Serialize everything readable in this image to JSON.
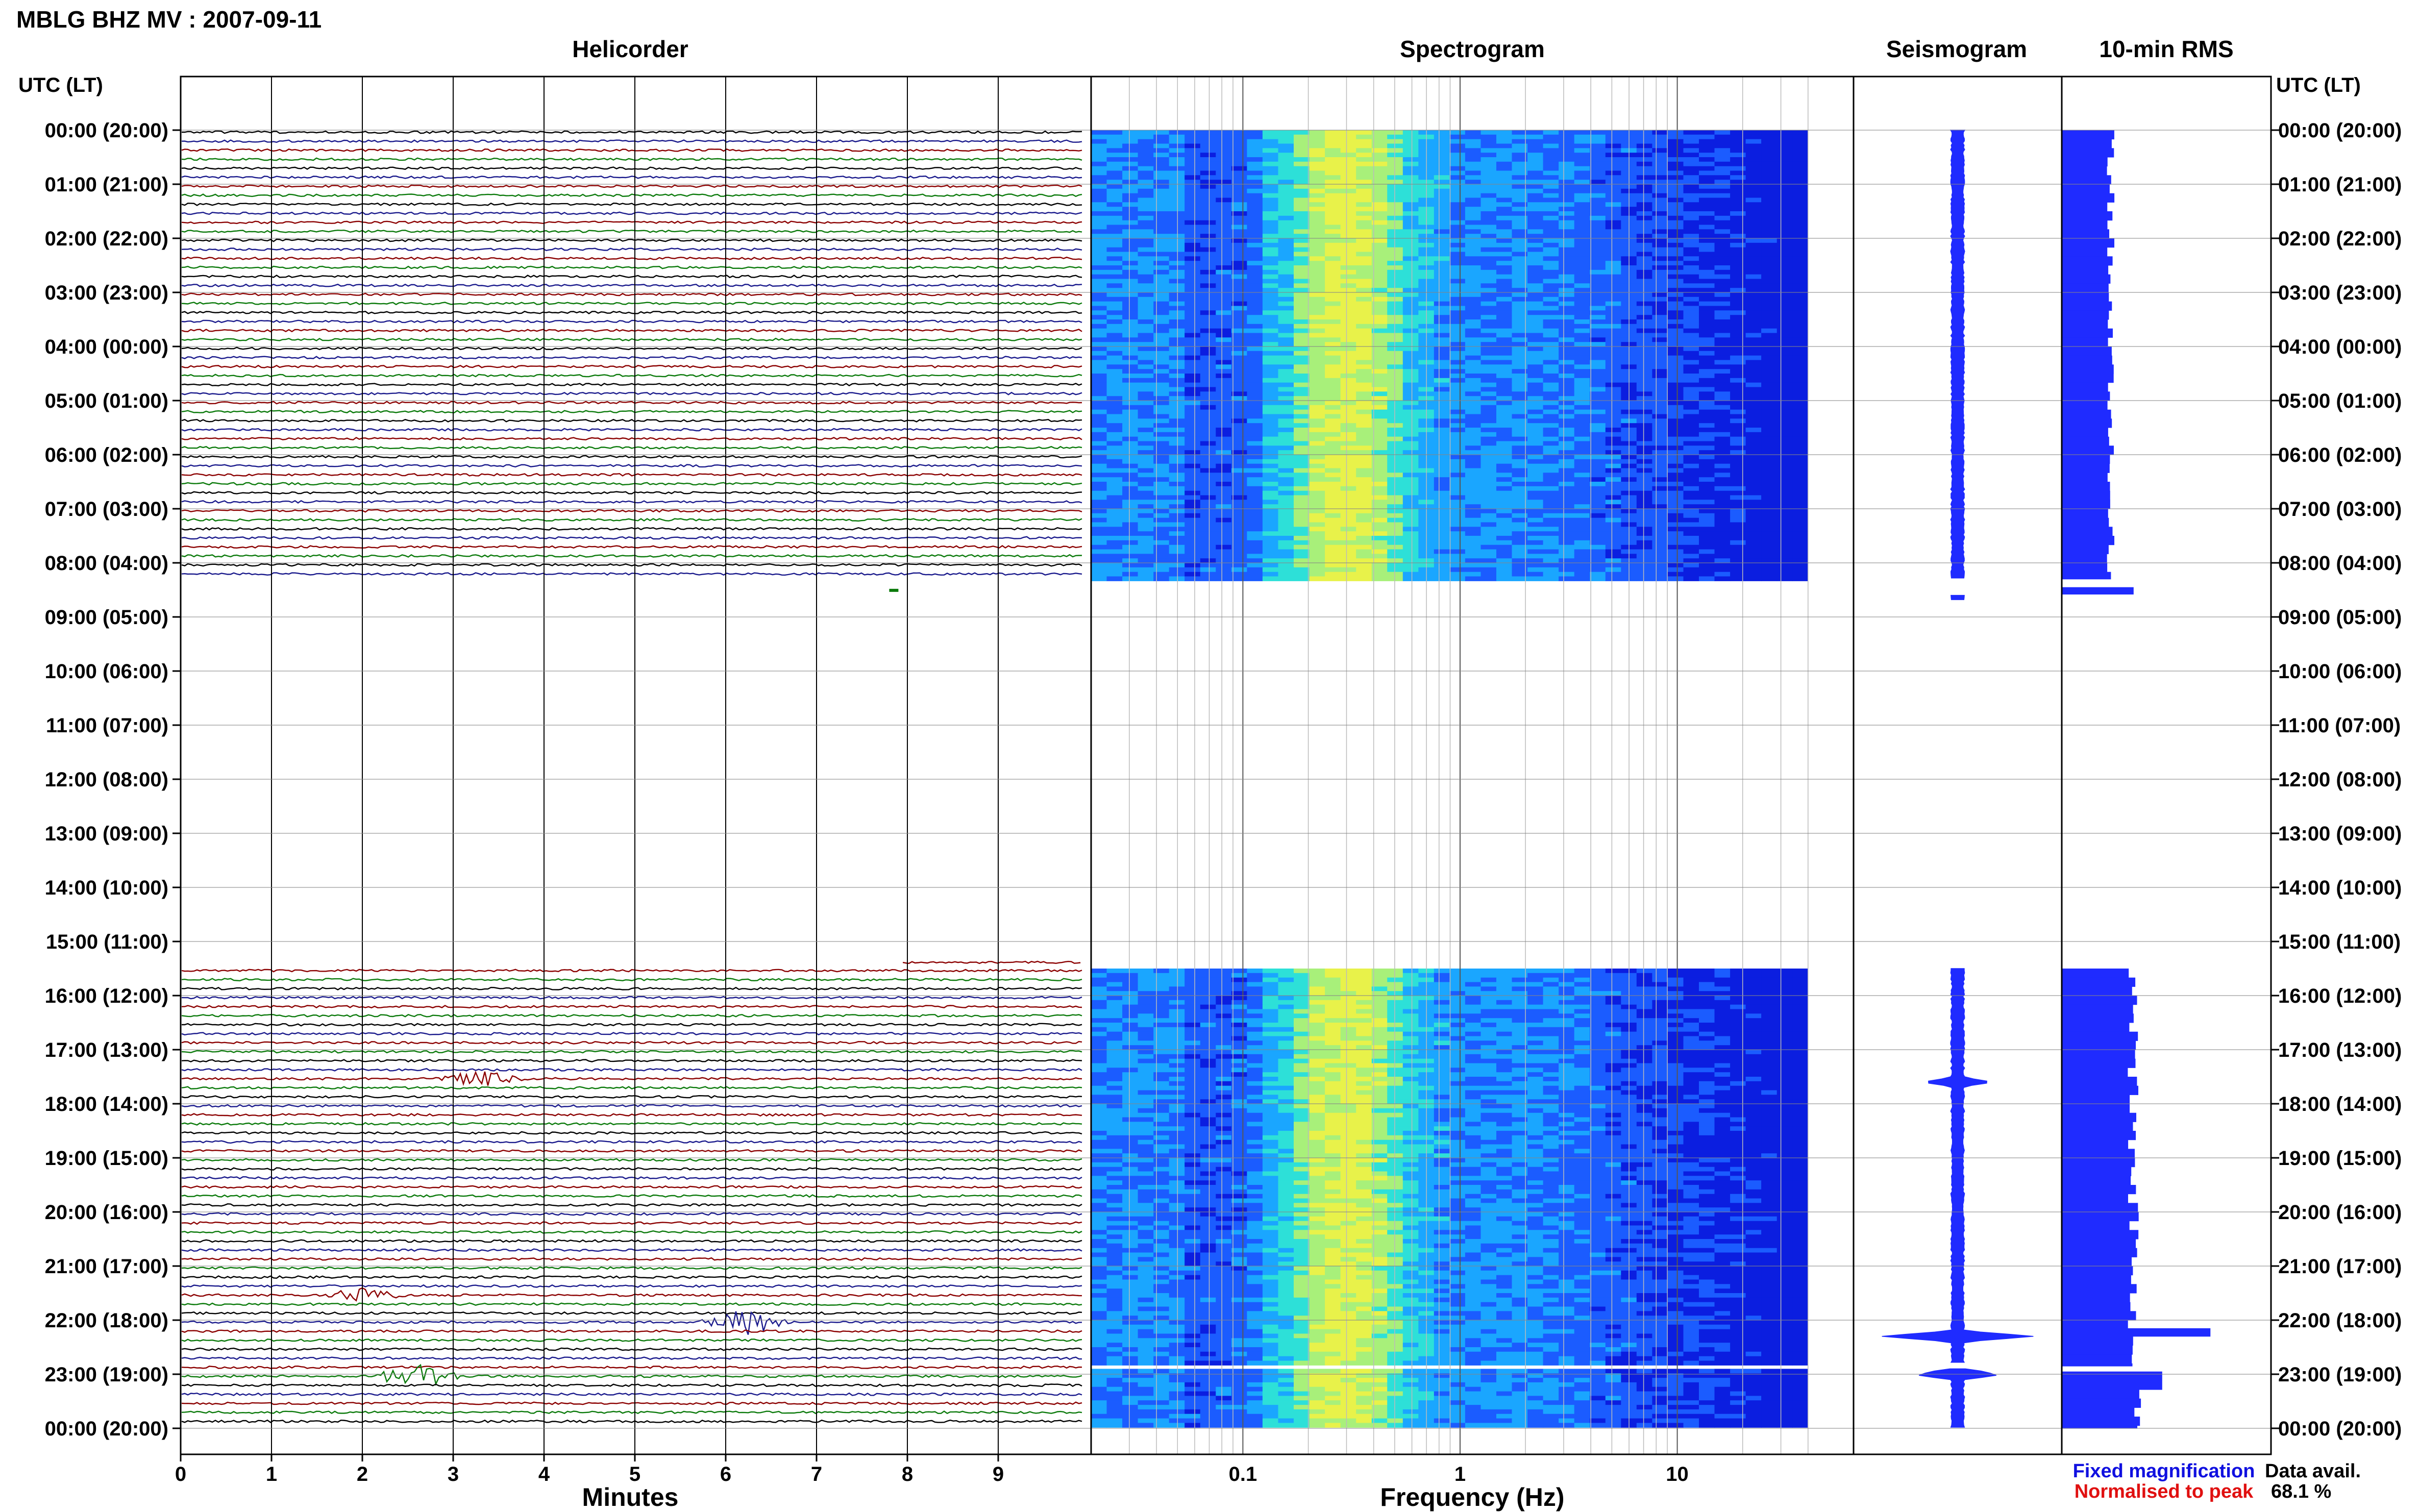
{
  "header": {
    "title": "MBLG BHZ MV : 2007-09-11",
    "panels": {
      "helicorder": "Helicorder",
      "spectrogram": "Spectrogram",
      "seismogram": "Seismogram",
      "rms": "10-min RMS"
    },
    "time_axis_label": "UTC (LT)"
  },
  "footer": {
    "minutes_label": "Minutes",
    "frequency_label": "Frequency (Hz)",
    "legend_fixed": "Fixed magnification",
    "legend_normalised": "Normalised to peak",
    "data_avail_label": "Data avail.",
    "data_avail_value": "68.1 %"
  },
  "colors": {
    "fixed_magnification": "#1010e0",
    "normalised_to_peak": "#e01010",
    "trace_cycle": [
      "#000000",
      "#1a1a8c",
      "#8b0000",
      "#0b7a0b"
    ],
    "seismogram_fill": "#1f2bff",
    "rms_fill": "#1f2bff"
  },
  "chart_data": [
    {
      "type": "line",
      "panel": "helicorder",
      "title": "Helicorder",
      "xlabel": "Minutes",
      "x_ticks": [
        0,
        1,
        2,
        3,
        4,
        5,
        6,
        7,
        8,
        9
      ],
      "x_range": [
        0,
        10
      ],
      "y_tick_labels": [
        "00:00 (20:00)",
        "01:00 (21:00)",
        "02:00 (22:00)",
        "03:00 (23:00)",
        "04:00 (00:00)",
        "05:00 (01:00)",
        "06:00 (02:00)",
        "07:00 (03:00)",
        "08:00 (04:00)",
        "09:00 (05:00)",
        "10:00 (06:00)",
        "11:00 (07:00)",
        "12:00 (08:00)",
        "13:00 (09:00)",
        "14:00 (10:00)",
        "15:00 (11:00)",
        "16:00 (12:00)",
        "17:00 (13:00)",
        "18:00 (14:00)",
        "19:00 (15:00)",
        "20:00 (16:00)",
        "21:00 (17:00)",
        "22:00 (18:00)",
        "23:00 (19:00)",
        "00:00 (20:00)"
      ],
      "data_segments_utc_hours": [
        [
          0,
          8.3
        ],
        [
          15.5,
          24
        ]
      ],
      "gap_utc_hours": [
        [
          8.3,
          15.5
        ]
      ],
      "events": [
        {
          "utc_hour": 22.0,
          "minute": 6.2,
          "trace": "dark red",
          "note": "large burst"
        },
        {
          "utc_hour": 23.0,
          "minute": 2.6,
          "trace": "dark blue",
          "note": "large burst"
        },
        {
          "utc_hour": 21.5,
          "minute": 2.0,
          "trace": "dark red",
          "note": "burst"
        },
        {
          "utc_hour": 17.5,
          "minute": 3.3,
          "trace": "dark red",
          "note": "burst"
        }
      ]
    },
    {
      "type": "heatmap",
      "panel": "spectrogram",
      "title": "Spectrogram",
      "xlabel": "Frequency (Hz)",
      "x_scale": "log",
      "x_range": [
        0.02,
        50
      ],
      "x_ticks": [
        0.1,
        1,
        10
      ],
      "data_segments_utc_hours": [
        [
          0,
          8.3
        ],
        [
          15.5,
          22.8
        ],
        [
          22.9,
          24
        ]
      ],
      "peak_energy_frequency_hz": [
        0.2,
        0.45
      ],
      "colormap": [
        "#0b1ee0",
        "#1b5cff",
        "#1aa6ff",
        "#2de0d8",
        "#a8f07a",
        "#e8f24a"
      ]
    },
    {
      "type": "area",
      "panel": "seismogram",
      "title": "Seismogram",
      "data_segments_utc_hours": [
        [
          0,
          8.3
        ],
        [
          8.6,
          8.7
        ],
        [
          15.5,
          22.8
        ],
        [
          22.9,
          24
        ]
      ],
      "typical_halfwidth_relative": 0.08,
      "peaks": [
        {
          "utc_hour": 22.3,
          "halfwidth_relative": 1.0
        },
        {
          "utc_hour": 23.0,
          "halfwidth_relative": 0.6
        },
        {
          "utc_hour": 17.6,
          "halfwidth_relative": 0.4
        }
      ]
    },
    {
      "type": "bar",
      "panel": "rms",
      "title": "10-min RMS",
      "orientation": "horizontal",
      "utc_hours_start": [
        0,
        8.45,
        15.5,
        22.2,
        23.0
      ],
      "relative_values": [
        0.24,
        0.33,
        0.35,
        0.75,
        0.48
      ],
      "note": "values relative to panel width; bars drawn per 10-min interval"
    }
  ]
}
